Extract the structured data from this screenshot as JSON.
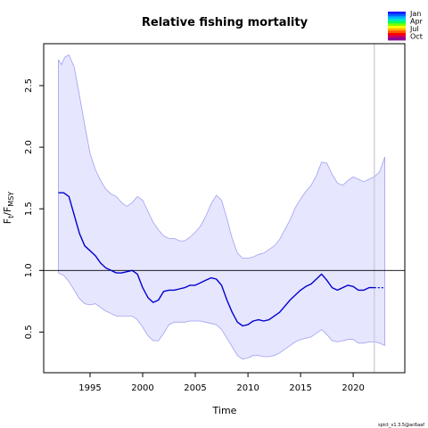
{
  "chart_data": {
    "type": "line",
    "title": "Relative fishing mortality",
    "xlabel": "Time",
    "ylabel": {
      "main": "F",
      "sub1": "t",
      "sep": "/F",
      "sub2": "MSY"
    },
    "xlim": [
      1990.6,
      2024.9
    ],
    "ylim": [
      0.17,
      2.84
    ],
    "x_ticks": [
      1995,
      2000,
      2005,
      2010,
      2015,
      2020
    ],
    "x_tick_labels": [
      "1995",
      "2000",
      "2005",
      "2010",
      "2015",
      "2020"
    ],
    "y_ticks": [
      0.5,
      1.0,
      1.5,
      2.0,
      2.5
    ],
    "y_tick_labels": [
      "0.5",
      "1.0",
      "1.5",
      "2.0",
      "2.5"
    ],
    "reference_line_y": 1.0,
    "vertical_line_x": 2022.0,
    "grid": false,
    "legend": {
      "position": "top-right",
      "labels": [
        "Jan",
        "Apr",
        "Jul",
        "Oct"
      ],
      "colors": [
        "#1a1aff",
        "#0066ff",
        "#00b4ff",
        "#00e6c8",
        "#00ff5a",
        "#7dff00",
        "#ffff00",
        "#ffb400",
        "#ff5a00",
        "#ff0000",
        "#c80064",
        "#8c0096"
      ]
    },
    "footer_text": "spict_v1.3.5@ac6aaf",
    "colors": {
      "estimate": "#0000cd",
      "ci_fill": "#e6e6ff",
      "ci_border": "#a0a0f0",
      "vertical_line": "#c8c8d2",
      "reference_line": "#000000"
    },
    "series": [
      {
        "role": "estimate",
        "x": [
          1992.0,
          1992.5,
          1993.0,
          1993.5,
          1994.0,
          1994.5,
          1995.0,
          1995.5,
          1996.0,
          1996.5,
          1997.0,
          1997.5,
          1998.0,
          1998.5,
          1999.0,
          1999.5,
          2000.0,
          2000.5,
          2001.0,
          2001.5,
          2002.0,
          2002.5,
          2003.0,
          2003.5,
          2004.0,
          2004.5,
          2005.0,
          2005.5,
          2006.0,
          2006.5,
          2007.0,
          2007.5,
          2008.0,
          2008.5,
          2009.0,
          2009.5,
          2010.0,
          2010.5,
          2011.0,
          2011.5,
          2012.0,
          2012.5,
          2013.0,
          2013.5,
          2014.0,
          2014.5,
          2015.0,
          2015.5,
          2016.0,
          2016.5,
          2017.0,
          2017.5,
          2018.0,
          2018.5,
          2019.0,
          2019.5,
          2020.0,
          2020.5,
          2021.0,
          2021.5,
          2022.0
        ],
        "y": [
          1.63,
          1.63,
          1.6,
          1.45,
          1.3,
          1.2,
          1.16,
          1.12,
          1.06,
          1.02,
          1.0,
          0.98,
          0.98,
          0.99,
          1.0,
          0.97,
          0.86,
          0.78,
          0.74,
          0.76,
          0.83,
          0.84,
          0.84,
          0.85,
          0.86,
          0.88,
          0.88,
          0.9,
          0.92,
          0.94,
          0.93,
          0.88,
          0.76,
          0.66,
          0.58,
          0.55,
          0.56,
          0.59,
          0.6,
          0.59,
          0.6,
          0.63,
          0.66,
          0.71,
          0.76,
          0.8,
          0.84,
          0.87,
          0.89,
          0.93,
          0.97,
          0.92,
          0.86,
          0.84,
          0.86,
          0.88,
          0.87,
          0.84,
          0.84,
          0.86,
          0.86
        ]
      },
      {
        "role": "forecast",
        "x": [
          2022.0,
          2022.5,
          2023.0
        ],
        "y": [
          0.86,
          0.86,
          0.86
        ]
      },
      {
        "role": "ci_upper",
        "x": [
          1992.0,
          1992.3,
          1992.6,
          1993.0,
          1993.5,
          1994.0,
          1994.5,
          1995.0,
          1995.5,
          1996.0,
          1996.5,
          1997.0,
          1997.5,
          1998.0,
          1998.5,
          1999.0,
          1999.5,
          2000.0,
          2000.5,
          2001.0,
          2001.5,
          2002.0,
          2002.5,
          2003.0,
          2003.5,
          2004.0,
          2004.5,
          2005.0,
          2005.5,
          2006.0,
          2006.5,
          2007.0,
          2007.5,
          2008.0,
          2008.5,
          2009.0,
          2009.5,
          2010.0,
          2010.5,
          2011.0,
          2011.5,
          2012.0,
          2012.5,
          2013.0,
          2013.5,
          2014.0,
          2014.5,
          2015.0,
          2015.5,
          2016.0,
          2016.5,
          2017.0,
          2017.5,
          2018.0,
          2018.5,
          2019.0,
          2019.5,
          2020.0,
          2020.5,
          2021.0,
          2021.5,
          2022.0,
          2022.5,
          2023.0
        ],
        "y": [
          2.71,
          2.67,
          2.73,
          2.75,
          2.65,
          2.42,
          2.18,
          1.95,
          1.82,
          1.73,
          1.66,
          1.62,
          1.6,
          1.55,
          1.52,
          1.55,
          1.6,
          1.57,
          1.48,
          1.39,
          1.33,
          1.28,
          1.26,
          1.26,
          1.24,
          1.24,
          1.27,
          1.31,
          1.36,
          1.44,
          1.54,
          1.61,
          1.57,
          1.42,
          1.26,
          1.14,
          1.1,
          1.1,
          1.11,
          1.13,
          1.14,
          1.17,
          1.2,
          1.25,
          1.33,
          1.41,
          1.51,
          1.58,
          1.64,
          1.69,
          1.77,
          1.88,
          1.87,
          1.78,
          1.71,
          1.69,
          1.73,
          1.76,
          1.74,
          1.72,
          1.74,
          1.76,
          1.8,
          1.92
        ]
      },
      {
        "role": "ci_lower",
        "x": [
          1992.0,
          1992.5,
          1993.0,
          1993.5,
          1994.0,
          1994.5,
          1995.0,
          1995.5,
          1996.0,
          1996.5,
          1997.0,
          1997.5,
          1998.0,
          1998.5,
          1999.0,
          1999.5,
          2000.0,
          2000.5,
          2001.0,
          2001.5,
          2002.0,
          2002.5,
          2003.0,
          2003.5,
          2004.0,
          2004.5,
          2005.0,
          2005.5,
          2006.0,
          2006.5,
          2007.0,
          2007.5,
          2008.0,
          2008.5,
          2009.0,
          2009.5,
          2010.0,
          2010.5,
          2011.0,
          2011.5,
          2012.0,
          2012.5,
          2013.0,
          2013.5,
          2014.0,
          2014.5,
          2015.0,
          2015.5,
          2016.0,
          2016.5,
          2017.0,
          2017.5,
          2018.0,
          2018.5,
          2019.0,
          2019.5,
          2020.0,
          2020.5,
          2021.0,
          2021.5,
          2022.0,
          2022.5,
          2023.0
        ],
        "y": [
          0.98,
          0.96,
          0.91,
          0.84,
          0.77,
          0.73,
          0.72,
          0.73,
          0.7,
          0.67,
          0.65,
          0.63,
          0.63,
          0.63,
          0.63,
          0.6,
          0.54,
          0.47,
          0.43,
          0.43,
          0.49,
          0.56,
          0.58,
          0.58,
          0.58,
          0.59,
          0.59,
          0.59,
          0.58,
          0.57,
          0.56,
          0.52,
          0.45,
          0.38,
          0.31,
          0.28,
          0.29,
          0.31,
          0.31,
          0.3,
          0.3,
          0.31,
          0.33,
          0.36,
          0.39,
          0.42,
          0.44,
          0.45,
          0.46,
          0.49,
          0.52,
          0.48,
          0.43,
          0.42,
          0.43,
          0.44,
          0.44,
          0.41,
          0.41,
          0.42,
          0.42,
          0.41,
          0.39
        ]
      }
    ]
  }
}
